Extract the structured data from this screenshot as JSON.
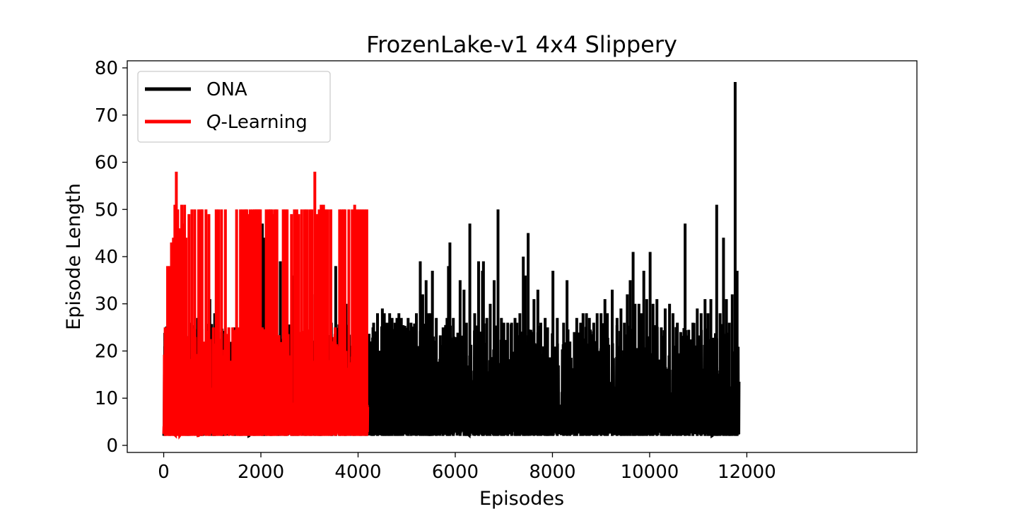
{
  "chart_data": {
    "type": "line",
    "title": "FrozenLake-v1 4x4 Slippery",
    "xlabel": "Episodes",
    "ylabel": "Episode Length",
    "xlim": [
      -750,
      15500
    ],
    "ylim": [
      -1.5,
      81.5
    ],
    "xticks": [
      0,
      2000,
      4000,
      6000,
      8000,
      10000,
      12000
    ],
    "xtick_labels": [
      "0",
      "2000",
      "4000",
      "6000",
      "8000",
      "10000",
      "12000"
    ],
    "yticks": [
      0,
      10,
      20,
      30,
      40,
      50,
      60,
      70,
      80
    ],
    "ytick_labels": [
      "0",
      "10",
      "20",
      "30",
      "40",
      "50",
      "60",
      "70",
      "80"
    ],
    "grid": false,
    "legend_position": "upper-left",
    "series": [
      {
        "name": "ONA",
        "legend_label": "ONA",
        "color": "#000000",
        "episodes": 11840,
        "min_length": 2,
        "floor_length": 2,
        "ceiling_length": 26,
        "spikes": [
          [
            20,
            21
          ],
          [
            230,
            18
          ],
          [
            480,
            20
          ],
          [
            700,
            27
          ],
          [
            770,
            12
          ],
          [
            800,
            17
          ],
          [
            950,
            31
          ],
          [
            1010,
            22
          ],
          [
            1050,
            28
          ],
          [
            1190,
            24
          ],
          [
            1230,
            20
          ],
          [
            1460,
            25
          ],
          [
            1860,
            23
          ],
          [
            2030,
            47
          ],
          [
            2060,
            44
          ],
          [
            2100,
            30
          ],
          [
            2210,
            27
          ],
          [
            2350,
            19
          ],
          [
            2400,
            39
          ],
          [
            2510,
            30
          ],
          [
            2640,
            36
          ],
          [
            2690,
            18
          ],
          [
            2750,
            33
          ],
          [
            2920,
            28
          ],
          [
            3020,
            22
          ],
          [
            3110,
            32
          ],
          [
            3190,
            25
          ],
          [
            3450,
            26
          ],
          [
            3540,
            38
          ],
          [
            3620,
            25
          ],
          [
            3750,
            30
          ],
          [
            3920,
            27
          ],
          [
            4050,
            29
          ],
          [
            4160,
            24
          ],
          [
            4320,
            26
          ],
          [
            4400,
            28
          ],
          [
            4500,
            29
          ],
          [
            4540,
            28
          ],
          [
            4570,
            26
          ],
          [
            4620,
            26
          ],
          [
            4650,
            28
          ],
          [
            4700,
            27
          ],
          [
            4760,
            26
          ],
          [
            4800,
            27
          ],
          [
            4840,
            28
          ],
          [
            4890,
            27
          ],
          [
            5030,
            27
          ],
          [
            5090,
            26
          ],
          [
            5200,
            28
          ],
          [
            5280,
            39
          ],
          [
            5330,
            32
          ],
          [
            5400,
            35
          ],
          [
            5450,
            28
          ],
          [
            5470,
            26
          ],
          [
            5490,
            28
          ],
          [
            5530,
            37
          ],
          [
            5610,
            27
          ],
          [
            5750,
            25
          ],
          [
            5830,
            27
          ],
          [
            5860,
            38
          ],
          [
            5890,
            43
          ],
          [
            5960,
            27
          ],
          [
            6100,
            35
          ],
          [
            6180,
            33
          ],
          [
            6230,
            26
          ],
          [
            6300,
            47
          ],
          [
            6400,
            28
          ],
          [
            6480,
            39
          ],
          [
            6560,
            37
          ],
          [
            6580,
            39
          ],
          [
            6650,
            27
          ],
          [
            6720,
            30
          ],
          [
            6800,
            35
          ],
          [
            6880,
            50
          ],
          [
            6950,
            27
          ],
          [
            7000,
            26
          ],
          [
            7080,
            26
          ],
          [
            7160,
            26
          ],
          [
            7230,
            27
          ],
          [
            7270,
            26
          ],
          [
            7330,
            28
          ],
          [
            7400,
            40
          ],
          [
            7440,
            36
          ],
          [
            7500,
            45
          ],
          [
            7620,
            31
          ],
          [
            7700,
            33
          ],
          [
            7760,
            26
          ],
          [
            7850,
            27
          ],
          [
            7900,
            25
          ],
          [
            8010,
            37
          ],
          [
            8100,
            27
          ],
          [
            8230,
            26
          ],
          [
            8300,
            35
          ],
          [
            8360,
            22
          ],
          [
            8450,
            24
          ],
          [
            8500,
            27
          ],
          [
            8580,
            26
          ],
          [
            8630,
            28
          ],
          [
            8700,
            28
          ],
          [
            8760,
            27
          ],
          [
            8850,
            26
          ],
          [
            8920,
            28
          ],
          [
            9000,
            28
          ],
          [
            9080,
            31
          ],
          [
            9130,
            28
          ],
          [
            9230,
            33
          ],
          [
            9330,
            27
          ],
          [
            9410,
            29
          ],
          [
            9480,
            26
          ],
          [
            9540,
            32
          ],
          [
            9600,
            35
          ],
          [
            9660,
            41
          ],
          [
            9700,
            30
          ],
          [
            9780,
            30
          ],
          [
            9830,
            28
          ],
          [
            9880,
            37
          ],
          [
            9940,
            31
          ],
          [
            10010,
            41
          ],
          [
            10070,
            30
          ],
          [
            10150,
            31
          ],
          [
            10240,
            25
          ],
          [
            10320,
            29
          ],
          [
            10410,
            30
          ],
          [
            10480,
            28
          ],
          [
            10570,
            26
          ],
          [
            10640,
            24
          ],
          [
            10730,
            47
          ],
          [
            10820,
            20
          ],
          [
            10890,
            26
          ],
          [
            10980,
            29
          ],
          [
            11060,
            28
          ],
          [
            11140,
            31
          ],
          [
            11200,
            28
          ],
          [
            11260,
            31
          ],
          [
            11330,
            21
          ],
          [
            11380,
            51
          ],
          [
            11450,
            28
          ],
          [
            11520,
            44
          ],
          [
            11580,
            31
          ],
          [
            11640,
            26
          ],
          [
            11700,
            32
          ],
          [
            11760,
            77
          ],
          [
            11800,
            37
          ]
        ]
      },
      {
        "name": "Q-Learning",
        "legend_label_italic": "Q",
        "legend_label_rest": "-Learning",
        "color": "#ff0000",
        "episodes": 4200,
        "min_length": 2,
        "floor_length": 2,
        "ceiling_length": 25,
        "spikes": [
          [
            30,
            25
          ],
          [
            80,
            38
          ],
          [
            120,
            38
          ],
          [
            160,
            43
          ],
          [
            200,
            44
          ],
          [
            230,
            51
          ],
          [
            260,
            58
          ],
          [
            290,
            50
          ],
          [
            330,
            46
          ],
          [
            370,
            51
          ],
          [
            400,
            47
          ],
          [
            430,
            51
          ],
          [
            460,
            44
          ],
          [
            520,
            49
          ],
          [
            580,
            50
          ],
          [
            640,
            50
          ],
          [
            720,
            50
          ],
          [
            770,
            50
          ],
          [
            790,
            50
          ],
          [
            870,
            50
          ],
          [
            930,
            49
          ],
          [
            1020,
            25
          ],
          [
            1080,
            50
          ],
          [
            1130,
            50
          ],
          [
            1190,
            50
          ],
          [
            1270,
            50
          ],
          [
            1340,
            25
          ],
          [
            1420,
            25
          ],
          [
            1500,
            50
          ],
          [
            1540,
            25
          ],
          [
            1580,
            50
          ],
          [
            1630,
            50
          ],
          [
            1680,
            50
          ],
          [
            1710,
            50
          ],
          [
            1740,
            49
          ],
          [
            1780,
            50
          ],
          [
            1830,
            50
          ],
          [
            1870,
            50
          ],
          [
            1900,
            50
          ],
          [
            1930,
            50
          ],
          [
            1960,
            50
          ],
          [
            1990,
            50
          ],
          [
            2030,
            25
          ],
          [
            2110,
            50
          ],
          [
            2160,
            50
          ],
          [
            2190,
            50
          ],
          [
            2230,
            50
          ],
          [
            2260,
            49
          ],
          [
            2290,
            50
          ],
          [
            2330,
            50
          ],
          [
            2460,
            50
          ],
          [
            2500,
            50
          ],
          [
            2540,
            50
          ],
          [
            2630,
            49
          ],
          [
            2690,
            50
          ],
          [
            2740,
            50
          ],
          [
            2780,
            49
          ],
          [
            2840,
            50
          ],
          [
            2900,
            50
          ],
          [
            2950,
            50
          ],
          [
            3010,
            50
          ],
          [
            3050,
            50
          ],
          [
            3110,
            58
          ],
          [
            3160,
            49
          ],
          [
            3200,
            50
          ],
          [
            3240,
            51
          ],
          [
            3290,
            51
          ],
          [
            3330,
            50
          ],
          [
            3380,
            50
          ],
          [
            3440,
            50
          ],
          [
            3530,
            25
          ],
          [
            3620,
            50
          ],
          [
            3660,
            50
          ],
          [
            3700,
            50
          ],
          [
            3730,
            50
          ],
          [
            3810,
            50
          ],
          [
            3880,
            50
          ],
          [
            3930,
            51
          ],
          [
            3980,
            50
          ],
          [
            4030,
            50
          ],
          [
            4080,
            50
          ],
          [
            4130,
            50
          ],
          [
            4180,
            50
          ]
        ]
      }
    ]
  }
}
